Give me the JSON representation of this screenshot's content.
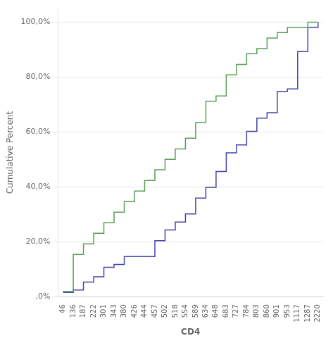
{
  "chart_data": {
    "type": "step",
    "xlabel": "CD4",
    "ylabel": "Cumulative Percent",
    "categories": [
      "46",
      "136",
      "187",
      "222",
      "301",
      "343",
      "380",
      "426",
      "444",
      "457",
      "502",
      "518",
      "554",
      "589",
      "634",
      "648",
      "683",
      "727",
      "784",
      "803",
      "860",
      "901",
      "953",
      "1117",
      "1287",
      "2220"
    ],
    "series": [
      {
        "color": "#5a9e5a",
        "values": [
          1.9,
          15.4,
          19.2,
          23.1,
          26.9,
          30.8,
          34.6,
          38.5,
          42.3,
          46.2,
          50.0,
          53.8,
          57.7,
          63.5,
          71.2,
          73.1,
          80.8,
          84.6,
          88.5,
          90.4,
          94.2,
          96.2,
          98.1,
          98.1,
          100.0,
          100.0
        ]
      },
      {
        "color": "#4444aa",
        "values": [
          1.5,
          2.4,
          5.3,
          7.2,
          10.7,
          11.7,
          14.6,
          14.6,
          14.6,
          20.4,
          24.3,
          27.2,
          30.1,
          35.9,
          39.8,
          45.6,
          52.4,
          55.3,
          60.2,
          65.0,
          67.0,
          74.8,
          75.7,
          89.3,
          98.1,
          100.0
        ]
      }
    ],
    "ylim": [
      0,
      105
    ],
    "yticks": [
      {
        "value": 0,
        "label": ",0%"
      },
      {
        "value": 20,
        "label": "20,0%"
      },
      {
        "value": 40,
        "label": "40,0%"
      },
      {
        "value": 60,
        "label": "60,0%"
      },
      {
        "value": 80,
        "label": "80,0%"
      },
      {
        "value": 100,
        "label": "100,0%"
      }
    ],
    "grid": true
  }
}
